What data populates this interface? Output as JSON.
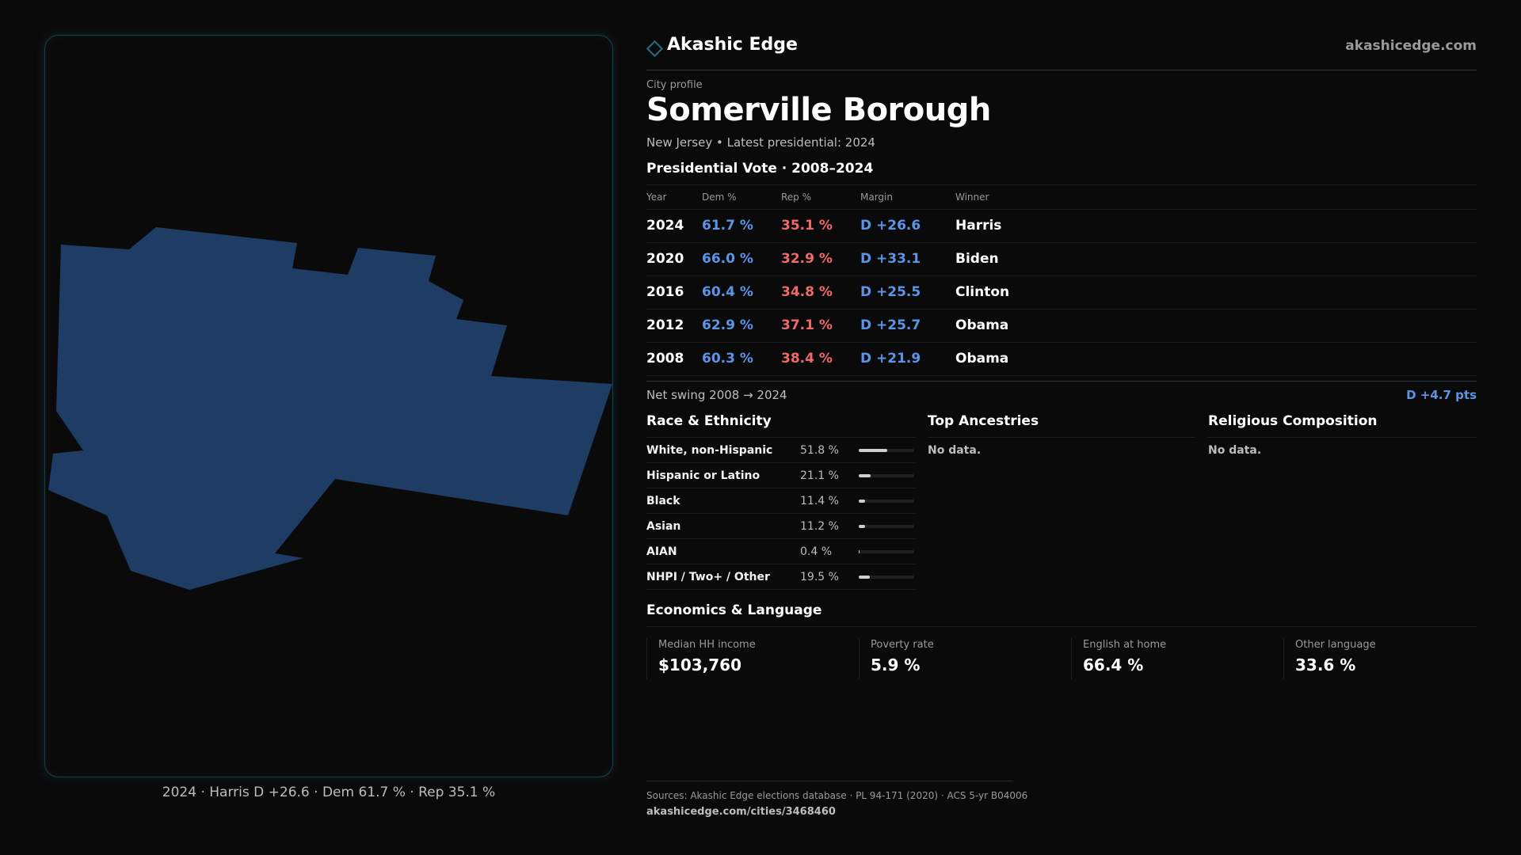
{
  "brand": {
    "name": "Akashic Edge",
    "site": "akashicedge.com"
  },
  "profile": {
    "eyebrow": "City profile",
    "city": "Somerville Borough",
    "subtitle": "New Jersey • Latest presidential: 2024"
  },
  "map": {
    "fill_color": "#1f3d64",
    "caption": "2024 · Harris D +26.6 · Dem 61.7 % · Rep 35.1 %"
  },
  "presidential": {
    "title": "Presidential Vote · 2008–2024",
    "headers": {
      "year": "Year",
      "dem": "Dem %",
      "rep": "Rep %",
      "margin": "Margin",
      "winner": "Winner"
    },
    "rows": [
      {
        "year": "2024",
        "dem": "61.7 %",
        "rep": "35.1 %",
        "margin": "D +26.6",
        "winner": "Harris"
      },
      {
        "year": "2020",
        "dem": "66.0 %",
        "rep": "32.9 %",
        "margin": "D +33.1",
        "winner": "Biden"
      },
      {
        "year": "2016",
        "dem": "60.4 %",
        "rep": "34.8 %",
        "margin": "D +25.5",
        "winner": "Clinton"
      },
      {
        "year": "2012",
        "dem": "62.9 %",
        "rep": "37.1 %",
        "margin": "D +25.7",
        "winner": "Obama"
      },
      {
        "year": "2008",
        "dem": "60.3 %",
        "rep": "38.4 %",
        "margin": "D +21.9",
        "winner": "Obama"
      }
    ],
    "colors": {
      "dem": "#5b95e8",
      "rep": "#ee6a6a"
    }
  },
  "swing": {
    "label": "Net swing 2008 → 2024",
    "value": "D +4.7 pts"
  },
  "race": {
    "title": "Race & Ethnicity",
    "rows": [
      {
        "label": "White, non-Hispanic",
        "value": "51.8 %",
        "share": 0.518
      },
      {
        "label": "Hispanic or Latino",
        "value": "21.1 %",
        "share": 0.211
      },
      {
        "label": "Black",
        "value": "11.4 %",
        "share": 0.114
      },
      {
        "label": "Asian",
        "value": "11.2 %",
        "share": 0.112
      },
      {
        "label": "AIAN",
        "value": "0.4 %",
        "share": 0.004
      },
      {
        "label": "NHPI / Two+ / Other",
        "value": "19.5 %",
        "share": 0.195
      }
    ]
  },
  "ancestries": {
    "title": "Top Ancestries",
    "empty": "No data."
  },
  "religion": {
    "title": "Religious Composition",
    "empty": "No data."
  },
  "economics": {
    "title": "Economics & Language",
    "cards": [
      {
        "label": "Median HH income",
        "value": "$103,760"
      },
      {
        "label": "Poverty rate",
        "value": "5.9 %"
      },
      {
        "label": "English at home",
        "value": "66.4 %"
      },
      {
        "label": "Other language",
        "value": "33.6 %"
      }
    ]
  },
  "footer": {
    "sources": "Sources: Akashic Edge elections database · PL 94-171 (2020) · ACS 5-yr B04006",
    "url": "akashicedge.com/cities/3468460"
  }
}
